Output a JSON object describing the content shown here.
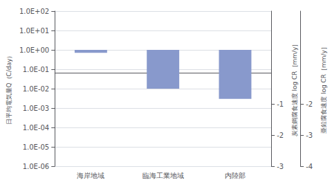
{
  "chart_data": {
    "type": "bar",
    "categories": [
      "海岸地域",
      "臨海工業地域",
      "内陸部"
    ],
    "values": [
      0.7,
      0.01,
      0.003
    ],
    "color": "#8899cc",
    "log": "y",
    "grid": true,
    "ylabel": "日平均電気量Q（C/day）",
    "ylim": [
      1e-06,
      100
    ],
    "yticks": [
      {
        "value": 1e-06,
        "label": "1.0E-06"
      },
      {
        "value": 1e-05,
        "label": "1.0E-05"
      },
      {
        "value": 0.0001,
        "label": "1.0E-04"
      },
      {
        "value": 0.001,
        "label": "1.0E-03"
      },
      {
        "value": 0.01,
        "label": "1.0E-02"
      },
      {
        "value": 0.1,
        "label": "1.0E-01"
      },
      {
        "value": 1,
        "label": "1.0E+00"
      },
      {
        "value": 10,
        "label": "1.0E+01"
      },
      {
        "value": 100,
        "label": "1.0E+02"
      }
    ],
    "y2label": "炭素鋼腐食速度 log CR［mm/y］",
    "y2lim": [
      -3,
      2
    ],
    "y2ticks": [
      -1,
      -2,
      -3
    ],
    "y3label": "亜鉛腐食速度 log CR［mm/y］",
    "y3lim": [
      -4,
      1
    ],
    "y3ticks": [
      -2,
      -3,
      -4
    ]
  }
}
